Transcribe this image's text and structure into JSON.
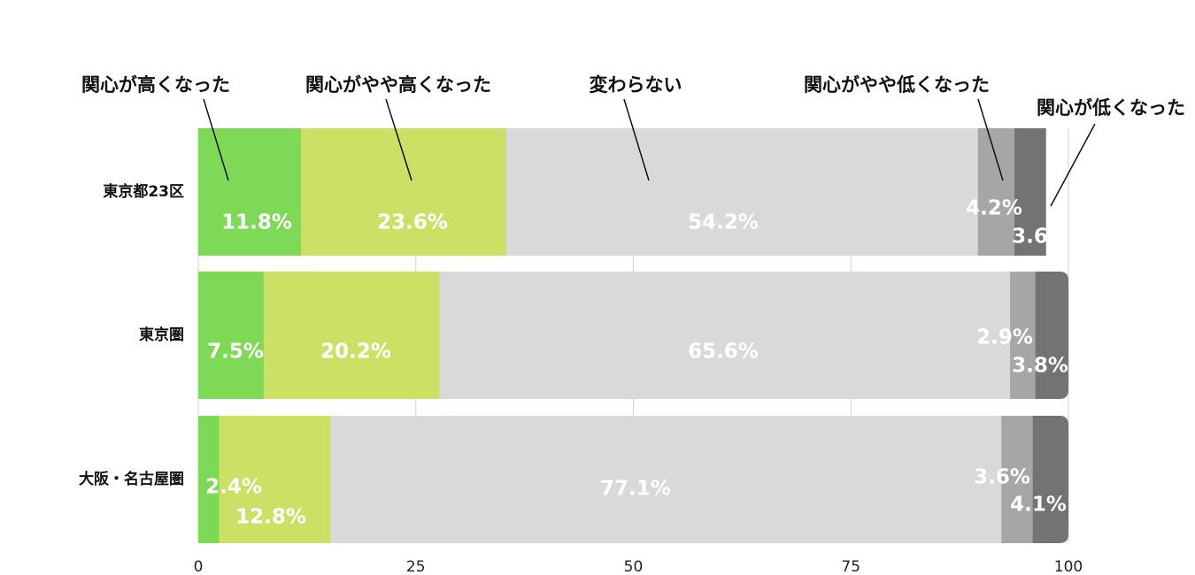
{
  "chart_data": {
    "type": "bar",
    "orientation": "horizontal",
    "stacked": true,
    "categories": [
      "東京都23区",
      "東京圏",
      "大阪・名古屋圏"
    ],
    "series": [
      {
        "name": "関心が高くなった",
        "color": "#7ed957",
        "values": [
          11.8,
          7.5,
          2.4
        ],
        "labels": [
          "11.8%",
          "7.5%",
          "2.4%"
        ]
      },
      {
        "name": "関心がやや高くなった",
        "color": "#cce066",
        "values": [
          23.6,
          20.2,
          12.8
        ],
        "labels": [
          "23.6%",
          "20.2%",
          "12.8%"
        ]
      },
      {
        "name": "変わらない",
        "color": "#d9d9d9",
        "values": [
          54.2,
          65.6,
          77.1
        ],
        "labels": [
          "54.2%",
          "65.6%",
          "77.1%"
        ]
      },
      {
        "name": "関心がやや低くなった",
        "color": "#a6a6a6",
        "values": [
          4.2,
          2.9,
          3.6
        ],
        "labels": [
          "4.2%",
          "2.9%",
          "3.6%"
        ]
      },
      {
        "name": "関心が低くなった",
        "color": "#737373",
        "values": [
          3.6,
          3.8,
          4.1
        ],
        "labels": [
          "3.6%",
          "3.8%",
          "4.1%"
        ]
      }
    ],
    "xlim": [
      0,
      100
    ],
    "xticks": [
      0,
      25,
      50,
      75,
      100
    ],
    "xtick_labels": [
      "0",
      "25",
      "50",
      "75",
      "100"
    ],
    "grid": true,
    "legend": "top, callout labels with leader lines"
  }
}
